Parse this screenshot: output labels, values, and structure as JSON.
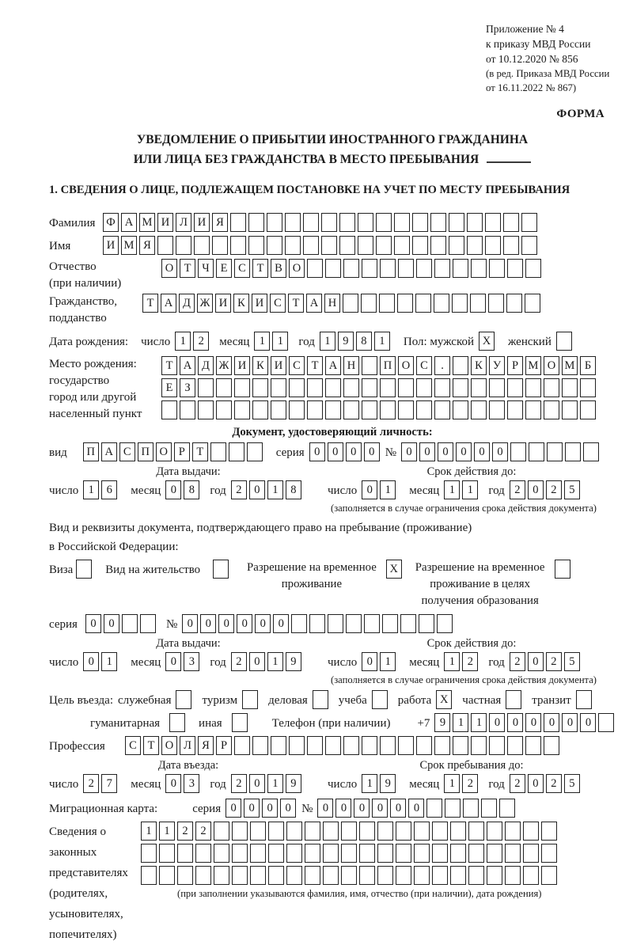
{
  "header": {
    "lines": [
      "Приложение № 4",
      "к приказу МВД России",
      "от 10.12.2020 № 856"
    ],
    "amendment": [
      "(в ред. Приказа МВД России",
      "от 16.11.2022 № 867)"
    ],
    "form_label": "ФОРМА"
  },
  "title": [
    "УВЕДОМЛЕНИЕ О ПРИБЫТИИ ИНОСТРАННОГО ГРАЖДАНИНА",
    "ИЛИ ЛИЦА БЕЗ ГРАЖДАНСТВА В МЕСТО ПРЕБЫВАНИЯ"
  ],
  "section1_heading": "1. СВЕДЕНИЯ О ЛИЦЕ, ПОДЛЕЖАЩЕМ ПОСТАНОВКЕ НА УЧЕТ ПО МЕСТУ ПРЕБЫВАНИЯ",
  "surname": {
    "label": "Фамилия",
    "cells": "ФАМИЛИЯ_________________"
  },
  "given_name": {
    "label": "Имя",
    "cells": "ИМЯ_____________________"
  },
  "patronymic": {
    "label_line1": "Отчество",
    "label_line2": "(при наличии)",
    "cells": "ОТЧЕСТВО_____________"
  },
  "citizenship": {
    "label_line1": "Гражданство,",
    "label_line2": "подданство",
    "cells": "ТАДЖИКИСТАН___________"
  },
  "birth_date": {
    "label": "Дата рождения:",
    "day_label": "число",
    "day": "12",
    "month_label": "месяц",
    "month": "11",
    "year_label": "год",
    "year": "1981",
    "sex_label": "Пол: мужской",
    "male_checkbox": "X",
    "female_label": "женский",
    "female_checkbox": "_"
  },
  "birth_place": {
    "label_line1": "Место рождения:",
    "label_line2": "государство",
    "label_line3": "город или другой",
    "label_line4": "населенный пункт",
    "row1": "ТАДЖИКИСТАН_ПОС._КУРМОМБ",
    "row2": "ЕЗ______________________",
    "row3": "________________________"
  },
  "identity_doc": {
    "heading": "Документ, удостоверяющий личность:",
    "kind_label": "вид",
    "kind_cells": "ПАСПОРТ___",
    "series_label": "серия",
    "series_cells": "0000",
    "number_label": "№",
    "number_cells": "000000_____",
    "issue_heading": "Дата выдачи:",
    "issue_day_label": "число",
    "issue_day": "16",
    "issue_month_label": "месяц",
    "issue_month": "08",
    "issue_year_label": "год",
    "issue_year": "2018",
    "valid_heading": "Срок действия до:",
    "valid_day_label": "число",
    "valid_day": "01",
    "valid_month_label": "месяц",
    "valid_month": "11",
    "valid_year_label": "год",
    "valid_year": "2025",
    "note": "(заполняется в случае ограничения срока действия документа)"
  },
  "residence_doc": {
    "intro_line1": "Вид и реквизиты документа, подтверждающего право на пребывание (проживание)",
    "intro_line2": "в Российской Федерации:",
    "visa_label": "Виза",
    "visa_checkbox": "_",
    "residence_permit_label": "Вид на жительство",
    "residence_permit_checkbox": "_",
    "temp_permit_line1": "Разрешение на временное",
    "temp_permit_line2": "проживание",
    "temp_permit_checkbox": "X",
    "edu_permit_line1": "Разрешение на временное",
    "edu_permit_line2": "проживание в целях",
    "edu_permit_line3": "получения образования",
    "edu_permit_checkbox": "_",
    "series_label": "серия",
    "series_cells": "00__",
    "number_label": "№",
    "number_cells": "000000_________",
    "issue_heading": "Дата выдачи:",
    "issue_day_label": "число",
    "issue_day": "01",
    "issue_month_label": "месяц",
    "issue_month": "03",
    "issue_year_label": "год",
    "issue_year": "2019",
    "valid_heading": "Срок действия до:",
    "valid_day_label": "число",
    "valid_day": "01",
    "valid_month_label": "месяц",
    "valid_month": "12",
    "valid_year_label": "год",
    "valid_year": "2025",
    "note": "(заполняется в случае ограничения срока действия документа)"
  },
  "entry_purpose": {
    "intro": "Цель въезда:",
    "items": [
      {
        "label": "служебная",
        "checkbox": "_"
      },
      {
        "label": "туризм",
        "checkbox": "_"
      },
      {
        "label": "деловая",
        "checkbox": "_"
      },
      {
        "label": "учеба",
        "checkbox": "_"
      },
      {
        "label": "работа",
        "checkbox": "X"
      },
      {
        "label": "частная",
        "checkbox": "_"
      },
      {
        "label": "транзит",
        "checkbox": "_"
      },
      {
        "label": "гуманитарная",
        "checkbox": "_"
      },
      {
        "label": "иная",
        "checkbox": "_"
      }
    ],
    "phone_label": "Телефон (при наличии)",
    "phone_prefix": "+7",
    "phone_cells": "911000000_"
  },
  "profession": {
    "label": "Профессия",
    "cells": "СТОЛЯР__________________"
  },
  "entry_dates": {
    "entry_heading": "Дата въезда:",
    "entry_day_label": "число",
    "entry_day": "27",
    "entry_month_label": "месяц",
    "entry_month": "03",
    "entry_year_label": "год",
    "entry_year": "2019",
    "stay_heading": "Срок пребывания до:",
    "stay_day_label": "число",
    "stay_day": "19",
    "stay_month_label": "месяц",
    "stay_month": "12",
    "stay_year_label": "год",
    "stay_year": "2025"
  },
  "migration_card": {
    "label": "Миграционная карта:",
    "series_label": "серия",
    "series_cells": "0000",
    "number_label": "№",
    "number_cells": "000000_____"
  },
  "legal_representatives": {
    "label_lines": [
      "Сведения о",
      "законных",
      "представителях",
      "(родителях,",
      "усыновителях,",
      "попечителях)"
    ],
    "row1": "1122___________________",
    "row2": "_______________________",
    "row3": "_______________________",
    "note": "(при заполнении указываются фамилия, имя, отчество (при наличии), дата рождения)"
  }
}
